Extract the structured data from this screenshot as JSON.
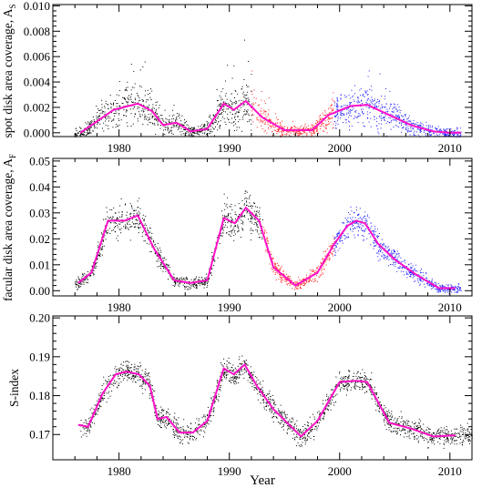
{
  "colors": {
    "data_a": "#000000",
    "data_b": "#ff2020",
    "data_c": "#1a1aff",
    "fit": "#ff10c8"
  },
  "chart_data": [
    {
      "type": "scatter",
      "ylabel": "spot disk area coverage, A",
      "ylabel_sub": "S",
      "xlim": [
        1974,
        2012
      ],
      "ylim": [
        -0.0003,
        0.0101
      ],
      "xticks": [
        1980,
        1990,
        2000,
        2010
      ],
      "yticks": [
        "0.000",
        "0.002",
        "0.004",
        "0.006",
        "0.008",
        "0.010"
      ],
      "ytick_values": [
        0,
        0.002,
        0.004,
        0.006,
        0.008,
        0.01
      ],
      "scatter_segments": [
        {
          "color": "data_a",
          "from": 1976,
          "to": 1992
        },
        {
          "color": "data_b",
          "from": 1992,
          "to": 1999.5
        },
        {
          "color": "data_c",
          "from": 1999.5,
          "to": 2011
        }
      ],
      "fit_line": {
        "x": [
          1976.5,
          1979.5,
          1981.7,
          1983.0,
          1984.0,
          1985.2,
          1986.5,
          1988.0,
          1989.5,
          1990.4,
          1991.5,
          1993.0,
          1995.0,
          1997.5,
          1999.0,
          2001.0,
          2002.5,
          2004.5,
          2006.5,
          2008.5,
          2010.0,
          2011.0
        ],
        "y": [
          0.0,
          0.0018,
          0.0023,
          0.0017,
          0.0006,
          0.0008,
          0.0001,
          0.0003,
          0.0023,
          0.0018,
          0.0025,
          0.0012,
          0.0002,
          0.0002,
          0.0014,
          0.0021,
          0.0022,
          0.0014,
          0.0006,
          0.0001,
          0.0,
          0.0
        ]
      }
    },
    {
      "type": "scatter",
      "ylabel": "facular disk area coverage, A",
      "ylabel_sub": "F",
      "xlim": [
        1974,
        2012
      ],
      "ylim": [
        -0.002,
        0.051
      ],
      "xticks": [
        1980,
        1990,
        2000,
        2010
      ],
      "yticks": [
        "0.00",
        "0.01",
        "0.02",
        "0.03",
        "0.04",
        "0.05"
      ],
      "ytick_values": [
        0,
        0.01,
        0.02,
        0.03,
        0.04,
        0.05
      ],
      "scatter_segments": [
        {
          "color": "data_a",
          "from": 1976,
          "to": 1993
        },
        {
          "color": "data_b",
          "from": 1993,
          "to": 1999.5
        },
        {
          "color": "data_c",
          "from": 1999.5,
          "to": 2011
        }
      ],
      "fit_line": {
        "x": [
          1976.3,
          1977.5,
          1979.0,
          1980.5,
          1981.7,
          1983.2,
          1985.0,
          1986.5,
          1988.0,
          1989.5,
          1990.5,
          1991.5,
          1992.7,
          1994.0,
          1996.0,
          1998.0,
          1999.5,
          2000.7,
          2001.5,
          2002.3,
          2003.5,
          2005.0,
          2007.0,
          2009.0,
          2010.5
        ],
        "y": [
          0.003,
          0.007,
          0.027,
          0.027,
          0.029,
          0.016,
          0.004,
          0.003,
          0.004,
          0.028,
          0.026,
          0.032,
          0.027,
          0.009,
          0.002,
          0.007,
          0.018,
          0.025,
          0.027,
          0.026,
          0.018,
          0.012,
          0.006,
          0.001,
          0.001
        ]
      }
    },
    {
      "type": "scatter",
      "ylabel": "S-index",
      "xlabel": "Year",
      "xlim": [
        1974,
        2012
      ],
      "ylim": [
        0.1635,
        0.2005
      ],
      "xticks": [
        1980,
        1990,
        2000,
        2010
      ],
      "yticks": [
        "0.17",
        "0.18",
        "0.19",
        "0.20"
      ],
      "ytick_values": [
        0.17,
        0.18,
        0.19,
        0.2
      ],
      "scatter_segments": [
        {
          "color": "data_a",
          "from": 1976.5,
          "to": 2012
        }
      ],
      "fit_line": {
        "x": [
          1976.3,
          1977.2,
          1978.5,
          1979.7,
          1980.7,
          1981.8,
          1982.8,
          1983.5,
          1984.3,
          1985.5,
          1986.7,
          1988.0,
          1989.5,
          1990.4,
          1991.4,
          1992.5,
          1994.0,
          1996.5,
          1998.0,
          2000.0,
          2001.5,
          2002.5,
          2004.5,
          2006.5,
          2008.5,
          2010.5
        ],
        "y": [
          0.1725,
          0.172,
          0.1805,
          0.1855,
          0.1862,
          0.1855,
          0.1825,
          0.174,
          0.1745,
          0.1705,
          0.1705,
          0.1735,
          0.187,
          0.1855,
          0.188,
          0.1825,
          0.1765,
          0.1695,
          0.1735,
          0.1835,
          0.1838,
          0.1835,
          0.173,
          0.1715,
          0.1695,
          0.1698
        ]
      }
    }
  ]
}
